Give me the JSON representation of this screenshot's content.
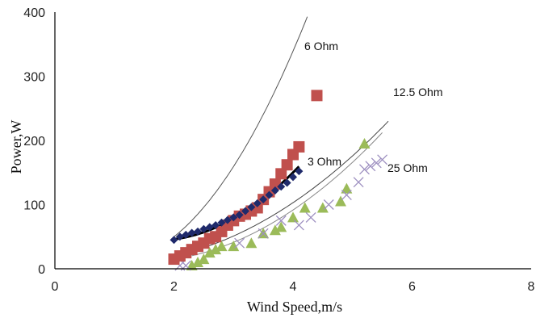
{
  "chart_data": {
    "type": "scatter",
    "xlabel": "Wind Speed,m/s",
    "ylabel": "Power,W",
    "xlim": [
      0,
      8
    ],
    "ylim": [
      0,
      400
    ],
    "xticks": [
      "0",
      "2",
      "4",
      "6",
      "8"
    ],
    "yticks": [
      "0",
      "100",
      "200",
      "300",
      "400"
    ],
    "grid": false,
    "series": [
      {
        "name": "6 Ohm",
        "marker": "square",
        "color": "#c0504d",
        "points": [
          [
            2.0,
            15
          ],
          [
            2.1,
            20
          ],
          [
            2.2,
            25
          ],
          [
            2.3,
            30
          ],
          [
            2.4,
            35
          ],
          [
            2.5,
            40
          ],
          [
            2.6,
            47
          ],
          [
            2.7,
            50
          ],
          [
            2.8,
            58
          ],
          [
            2.9,
            68
          ],
          [
            3.0,
            75
          ],
          [
            3.1,
            82
          ],
          [
            3.2,
            85
          ],
          [
            3.3,
            90
          ],
          [
            3.4,
            95
          ],
          [
            3.5,
            108
          ],
          [
            3.6,
            120
          ],
          [
            3.7,
            132
          ],
          [
            3.8,
            148
          ],
          [
            3.9,
            162
          ],
          [
            4.0,
            178
          ],
          [
            4.1,
            190
          ],
          [
            4.4,
            270
          ]
        ]
      },
      {
        "name": "3 Ohm",
        "marker": "diamond",
        "color": "#1f2a6b",
        "points": [
          [
            2.0,
            45
          ],
          [
            2.1,
            50
          ],
          [
            2.2,
            53
          ],
          [
            2.3,
            56
          ],
          [
            2.4,
            58
          ],
          [
            2.5,
            62
          ],
          [
            2.6,
            65
          ],
          [
            2.7,
            68
          ],
          [
            2.8,
            72
          ],
          [
            2.9,
            76
          ],
          [
            3.0,
            80
          ],
          [
            3.1,
            84
          ],
          [
            3.2,
            90
          ],
          [
            3.3,
            96
          ],
          [
            3.4,
            102
          ],
          [
            3.5,
            108
          ],
          [
            3.6,
            115
          ],
          [
            3.7,
            122
          ],
          [
            3.8,
            128
          ],
          [
            3.9,
            134
          ],
          [
            4.0,
            143
          ],
          [
            4.1,
            152
          ]
        ]
      },
      {
        "name": "12.5 Ohm",
        "marker": "triangle",
        "color": "#9bbb59",
        "points": [
          [
            2.3,
            5
          ],
          [
            2.4,
            10
          ],
          [
            2.5,
            15
          ],
          [
            2.6,
            25
          ],
          [
            2.7,
            30
          ],
          [
            2.8,
            35
          ],
          [
            3.0,
            35
          ],
          [
            3.3,
            40
          ],
          [
            3.5,
            55
          ],
          [
            3.7,
            60
          ],
          [
            3.8,
            65
          ],
          [
            4.0,
            80
          ],
          [
            4.2,
            95
          ],
          [
            4.5,
            95
          ],
          [
            4.8,
            105
          ],
          [
            4.9,
            125
          ],
          [
            5.2,
            195
          ]
        ]
      },
      {
        "name": "25 Ohm",
        "marker": "cross",
        "color": "#9d8fc0",
        "points": [
          [
            2.1,
            5
          ],
          [
            2.2,
            5
          ],
          [
            3.1,
            40
          ],
          [
            3.5,
            55
          ],
          [
            3.8,
            75
          ],
          [
            4.1,
            68
          ],
          [
            4.3,
            80
          ],
          [
            4.6,
            100
          ],
          [
            4.9,
            115
          ],
          [
            5.1,
            135
          ],
          [
            5.2,
            155
          ],
          [
            5.3,
            160
          ],
          [
            5.4,
            165
          ],
          [
            5.5,
            170
          ]
        ]
      }
    ],
    "trendlines": [
      {
        "name": "6 Ohm",
        "color": "#555555",
        "width": 1,
        "x": [
          2.0,
          5.2
        ],
        "formula": "poly2",
        "coef": [
          35.2,
          -66.5,
          42
        ]
      },
      {
        "name": "12.5 Ohm",
        "color": "#444444",
        "width": 1,
        "x": [
          2.0,
          5.6
        ],
        "formula": "poly2",
        "coef": [
          10.5,
          -21.5,
          21
        ]
      },
      {
        "name": "25 Ohm",
        "color": "#888888",
        "width": 1,
        "x": [
          2.3,
          5.5
        ],
        "formula": "poly2",
        "coef": [
          12.0,
          -33.6,
          34
        ]
      },
      {
        "name": "3 Ohm",
        "color": "#000000",
        "width": 3,
        "x": [
          2.0,
          4.1
        ],
        "formula": "poly2",
        "coef": [
          20.0,
          -68.0,
          102
        ]
      }
    ]
  }
}
